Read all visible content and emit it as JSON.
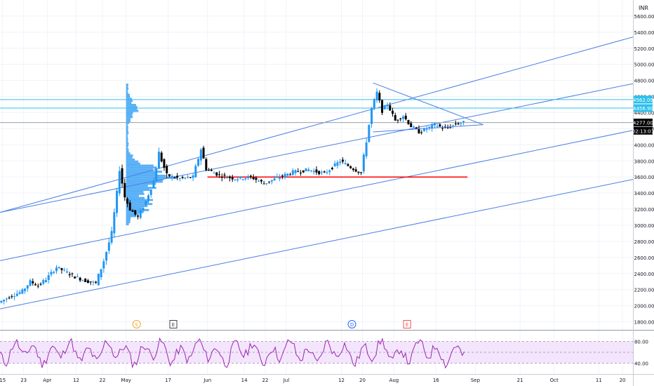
{
  "chart_data": {
    "type": "candlestick",
    "currency": "INR",
    "price_axis": {
      "ylim": [
        1700,
        5800
      ],
      "ticks": [
        1800,
        2000,
        2200,
        2400,
        2600,
        2800,
        3000,
        3200,
        3400,
        3600,
        3800,
        4000,
        4200,
        4400,
        4600,
        4800,
        5000,
        5200,
        5400,
        5600
      ],
      "tick_labels": [
        "1800.00",
        "2000.00",
        "2200.00",
        "2400.00",
        "2600.00",
        "2800.00",
        "3000.00",
        "3200.00",
        "3400.00",
        "3600.00",
        "3800.00",
        "4000.00",
        "4200.00",
        "4400.00",
        "4600.00",
        "4800.00",
        "5000.00",
        "5200.00",
        "5400.00",
        "5600.00"
      ]
    },
    "time_axis": {
      "tick_labels": [
        "15",
        "23",
        "Apr",
        "12",
        "22",
        "May",
        "17",
        "Jun",
        "14",
        "22",
        "Jul",
        "12",
        "20",
        "Aug",
        "16",
        "Sep",
        "21",
        "Oct",
        "11",
        "20"
      ],
      "tick_days": [
        -3,
        5,
        14,
        25,
        35,
        44,
        60,
        75,
        89,
        97,
        105,
        126,
        134,
        146,
        162,
        177,
        194,
        207,
        224,
        233
      ],
      "xlim_days": [
        -4,
        237
      ]
    },
    "price_labels": [
      {
        "text": "4562.09",
        "value": 4562.09,
        "color": "#2cc0ec"
      },
      {
        "text": "4456.90",
        "value": 4456.9,
        "color": "#2cc0ec"
      },
      {
        "text": "4277.00",
        "value": 4277,
        "color": "#000000"
      },
      {
        "text": "02:13:03",
        "value": 4175,
        "color": "#000000"
      }
    ],
    "horizontal_lines": [
      {
        "value": 4562.09,
        "color": "#2cc0ec"
      },
      {
        "value": 4456.9,
        "color": "#2cc0ec"
      },
      {
        "value": 4277,
        "color": "#9aa0a6"
      }
    ],
    "support_line": {
      "value": 3600,
      "from_day": 75,
      "to_day": 174,
      "color": "#ff0000"
    },
    "channel_lines": [
      {
        "start_day": -4,
        "start_price": 3160,
        "end_day": 237,
        "end_price": 5340
      },
      {
        "start_day": -4,
        "start_price": 3160,
        "end_day": 237,
        "end_price": 4760
      },
      {
        "start_day": -4,
        "start_price": 2560,
        "end_day": 237,
        "end_price": 4180
      },
      {
        "start_day": -4,
        "start_price": 1960,
        "end_day": 237,
        "end_price": 3570
      }
    ],
    "triangle": [
      {
        "day": 138,
        "price": 4770
      },
      {
        "day": 180,
        "price": 4250
      },
      {
        "day": 138,
        "price": 4160
      }
    ],
    "ohlc_series": [
      {
        "d": -4,
        "c": 2040
      },
      {
        "d": 0,
        "c": 2110
      },
      {
        "d": 5,
        "c": 2180
      },
      {
        "d": 8,
        "c": 2300
      },
      {
        "d": 11,
        "c": 2250
      },
      {
        "d": 14,
        "c": 2330
      },
      {
        "d": 18,
        "c": 2480
      },
      {
        "d": 21,
        "c": 2430
      },
      {
        "d": 25,
        "c": 2360
      },
      {
        "d": 29,
        "c": 2310
      },
      {
        "d": 33,
        "c": 2280
      },
      {
        "d": 36,
        "c": 2560
      },
      {
        "d": 39,
        "c": 2900
      },
      {
        "d": 41,
        "c": 3400
      },
      {
        "d": 42,
        "c": 3700
      },
      {
        "d": 44,
        "c": 3350
      },
      {
        "d": 46,
        "c": 3200
      },
      {
        "d": 49,
        "c": 3100
      },
      {
        "d": 52,
        "c": 3300
      },
      {
        "d": 55,
        "c": 3550
      },
      {
        "d": 57,
        "c": 3900
      },
      {
        "d": 60,
        "c": 3620
      },
      {
        "d": 65,
        "c": 3580
      },
      {
        "d": 70,
        "c": 3600
      },
      {
        "d": 73,
        "c": 3950
      },
      {
        "d": 75,
        "c": 3700
      },
      {
        "d": 80,
        "c": 3620
      },
      {
        "d": 86,
        "c": 3580
      },
      {
        "d": 92,
        "c": 3600
      },
      {
        "d": 97,
        "c": 3520
      },
      {
        "d": 103,
        "c": 3600
      },
      {
        "d": 108,
        "c": 3660
      },
      {
        "d": 114,
        "c": 3690
      },
      {
        "d": 120,
        "c": 3640
      },
      {
        "d": 126,
        "c": 3800
      },
      {
        "d": 130,
        "c": 3720
      },
      {
        "d": 134,
        "c": 3650
      },
      {
        "d": 136,
        "c": 4050
      },
      {
        "d": 138,
        "c": 4450
      },
      {
        "d": 140,
        "c": 4650
      },
      {
        "d": 142,
        "c": 4420
      },
      {
        "d": 144,
        "c": 4510
      },
      {
        "d": 147,
        "c": 4300
      },
      {
        "d": 150,
        "c": 4360
      },
      {
        "d": 153,
        "c": 4230
      },
      {
        "d": 156,
        "c": 4160
      },
      {
        "d": 159,
        "c": 4200
      },
      {
        "d": 162,
        "c": 4250
      },
      {
        "d": 166,
        "c": 4200
      },
      {
        "d": 170,
        "c": 4260
      },
      {
        "d": 173,
        "c": 4277
      }
    ],
    "volume_profile": {
      "anchor_day": 44,
      "price_range": [
        3000,
        4760
      ],
      "max_width_days": 20,
      "color": "#2196f3"
    },
    "event_markers": [
      {
        "letter": "S",
        "day": 48,
        "color": "#f0a830",
        "shape": "circle"
      },
      {
        "letter": "E",
        "day": 62,
        "color": "#444444",
        "shape": "square"
      },
      {
        "letter": "D",
        "day": 130,
        "color": "#2962ff",
        "shape": "circle"
      },
      {
        "letter": "E",
        "day": 151,
        "color": "#ef5350",
        "shape": "square"
      }
    ],
    "rsi": {
      "ylim": [
        20,
        100
      ],
      "upper_band": 80,
      "lower_band": 40,
      "midline": 60,
      "tick_labels": [
        "80.00",
        "40.00"
      ],
      "tick_values": [
        80,
        40
      ],
      "color": "#9c27b0",
      "band_fill": "#f3e5fc"
    }
  }
}
